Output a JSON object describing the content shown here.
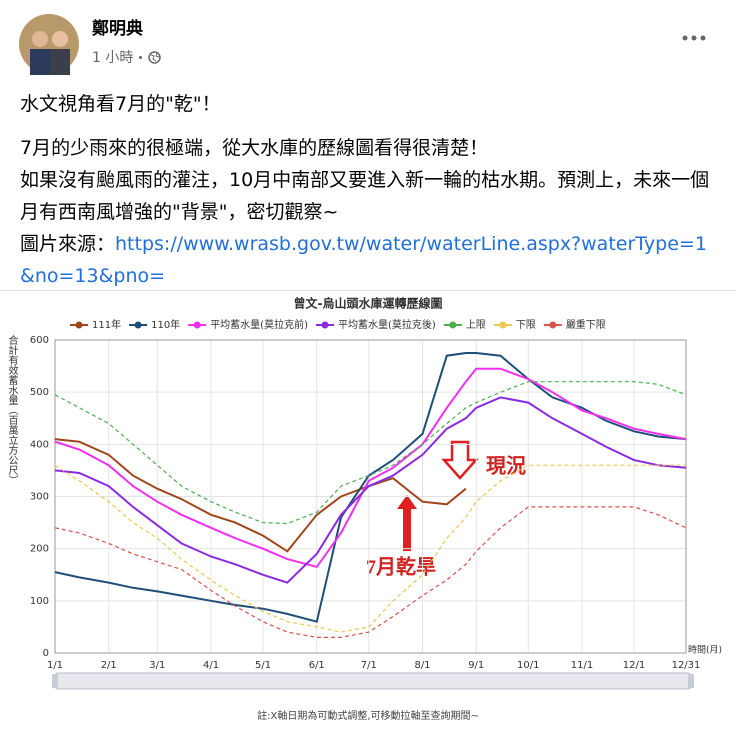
{
  "post": {
    "author": "鄭明典",
    "time": "1 小時",
    "headline": "水文視角看7月的\"乾\"！",
    "lines": [
      "7月的少雨來的很極端，從大水庫的歷線圖看得很清楚！",
      "如果沒有颱風雨的灌注，10月中南部又要進入新一輪的枯水期。預測上，未來一個月有西南風增強的\"背景\"，密切觀察~"
    ],
    "source_label": "圖片來源：",
    "source_url": "https://www.wrasb.gov.tw/water/waterLine.aspx?waterType=1&no=13&pno="
  },
  "chart_data": {
    "type": "line",
    "title": "曾文-烏山頭水庫運轉歷線圖",
    "y_label": "合計有效蓄水量（百萬立方公尺）",
    "x_label": "時間(月)",
    "note": "註:X軸日期為可動式調整,可移動拉軸至查詢期間~",
    "annotations": [
      "現況",
      "7月乾旱"
    ],
    "x": [
      "1/1",
      "1/15",
      "2/1",
      "2/15",
      "3/1",
      "3/15",
      "4/1",
      "4/15",
      "5/1",
      "5/15",
      "6/1",
      "6/15",
      "7/1",
      "7/15",
      "8/1",
      "8/15",
      "8/26",
      "9/1",
      "9/15",
      "10/1",
      "10/15",
      "11/1",
      "11/15",
      "12/1",
      "12/15",
      "12/31"
    ],
    "xticks": [
      "1/1",
      "2/1",
      "3/1",
      "4/1",
      "5/1",
      "6/1",
      "7/1",
      "8/1",
      "9/1",
      "10/1",
      "11/1",
      "12/1",
      "12/31"
    ],
    "ylim": [
      0,
      600
    ],
    "yticks": [
      0,
      100,
      200,
      300,
      400,
      500,
      600
    ],
    "grid": true,
    "series": [
      {
        "name": "111年",
        "color": "#a0461a",
        "dashed": false,
        "values": [
          410,
          405,
          380,
          340,
          315,
          295,
          265,
          250,
          225,
          195,
          265,
          300,
          320,
          335,
          290,
          285,
          315,
          null,
          null,
          null,
          null,
          null,
          null,
          null,
          null,
          null
        ]
      },
      {
        "name": "110年",
        "color": "#1f4e79",
        "dashed": false,
        "values": [
          155,
          145,
          135,
          125,
          118,
          110,
          100,
          92,
          85,
          75,
          60,
          260,
          340,
          370,
          420,
          570,
          575,
          575,
          570,
          525,
          490,
          470,
          445,
          425,
          415,
          410
        ]
      },
      {
        "name": "平均蓄水量(莫拉克前)",
        "color": "#f030f0",
        "dashed": false,
        "values": [
          405,
          390,
          360,
          320,
          290,
          265,
          240,
          220,
          200,
          180,
          165,
          230,
          330,
          355,
          400,
          470,
          520,
          545,
          545,
          525,
          500,
          465,
          450,
          430,
          420,
          410
        ]
      },
      {
        "name": "平均蓄水量(莫拉克後)",
        "color": "#8a2be2",
        "dashed": false,
        "values": [
          350,
          345,
          320,
          280,
          245,
          210,
          185,
          170,
          150,
          135,
          190,
          265,
          320,
          340,
          380,
          430,
          450,
          470,
          490,
          480,
          450,
          420,
          395,
          370,
          360,
          355
        ]
      },
      {
        "name": "上限",
        "color": "#4caf50",
        "dashed": true,
        "values": [
          495,
          470,
          440,
          400,
          360,
          320,
          290,
          270,
          250,
          248,
          270,
          320,
          340,
          360,
          400,
          440,
          470,
          480,
          500,
          520,
          520,
          520,
          520,
          520,
          515,
          495
        ]
      },
      {
        "name": "下限",
        "color": "#e8c850",
        "dashed": true,
        "values": [
          360,
          330,
          290,
          250,
          220,
          180,
          140,
          110,
          80,
          60,
          50,
          40,
          50,
          100,
          150,
          220,
          260,
          290,
          330,
          360,
          360,
          360,
          360,
          360,
          360,
          360
        ]
      },
      {
        "name": "嚴重下限",
        "color": "#d9534f",
        "dashed": true,
        "values": [
          240,
          230,
          210,
          190,
          175,
          160,
          120,
          90,
          60,
          40,
          30,
          30,
          40,
          70,
          110,
          140,
          170,
          195,
          240,
          280,
          280,
          280,
          280,
          280,
          265,
          240
        ]
      }
    ]
  }
}
